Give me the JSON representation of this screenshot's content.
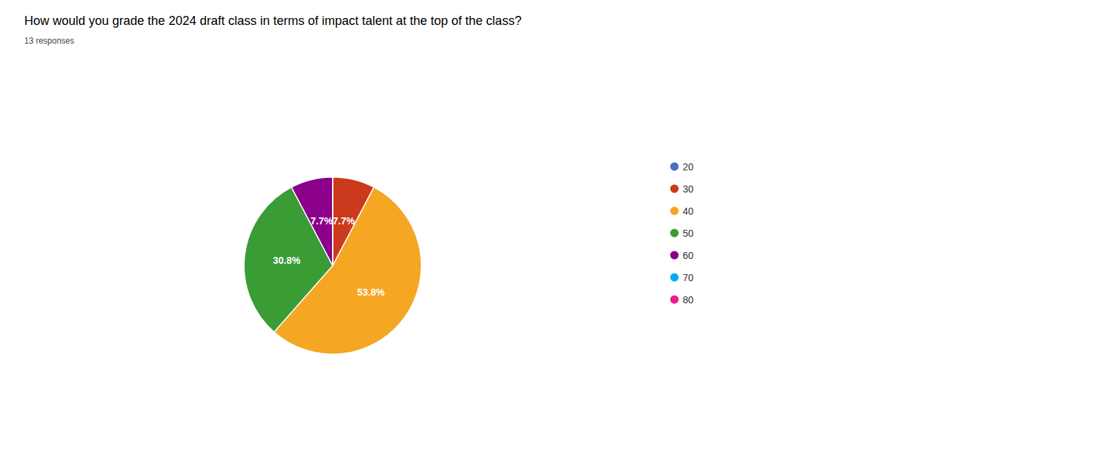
{
  "chart_data": {
    "type": "pie",
    "title": "How would you grade the 2024 draft class in terms of impact talent at the top of the class?",
    "subtitle": "13 responses",
    "categories": [
      "20",
      "30",
      "40",
      "50",
      "60",
      "70",
      "80"
    ],
    "values": [
      0,
      7.7,
      53.8,
      30.8,
      7.7,
      0,
      0
    ],
    "value_labels": [
      null,
      "7.7%",
      "53.8%",
      "30.8%",
      "7.7%",
      null,
      null
    ],
    "colors": [
      "#4472c4",
      "#cc3a1e",
      "#f5a623",
      "#3a9c35",
      "#8b008b",
      "#00aeef",
      "#e91e8c"
    ],
    "data_labels": true,
    "legend": "right"
  }
}
